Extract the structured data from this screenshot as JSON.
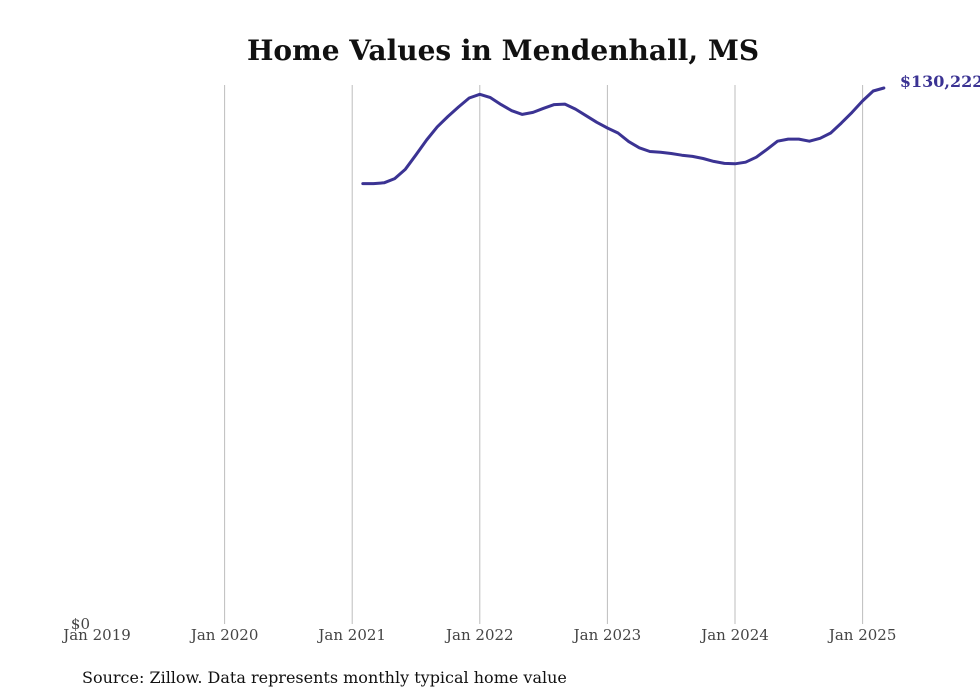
{
  "chart_data": {
    "type": "line",
    "title": "Home Values in Mendenhall, MS",
    "x_tick_labels": [
      "Jan 2019",
      "Jan 2020",
      "Jan 2021",
      "Jan 2022",
      "Jan 2023",
      "Jan 2024",
      "Jan 2025"
    ],
    "y_tick_labels": [
      "$0"
    ],
    "xlim": [
      "2019-01",
      "2025-06"
    ],
    "ylim": [
      0,
      130222
    ],
    "grid": "vertical",
    "line_color": "#3b3393",
    "end_label": "$130,222",
    "series": [
      {
        "x": [
          "2021-02",
          "2021-03",
          "2021-04",
          "2021-05",
          "2021-06",
          "2021-07",
          "2021-08",
          "2021-09",
          "2021-10",
          "2021-11",
          "2021-12",
          "2022-01",
          "2022-02",
          "2022-03",
          "2022-04",
          "2022-05",
          "2022-06",
          "2022-07",
          "2022-08",
          "2022-09",
          "2022-10",
          "2022-11",
          "2022-12",
          "2023-01",
          "2023-02",
          "2023-03",
          "2023-04",
          "2023-05",
          "2023-06",
          "2023-07",
          "2023-08",
          "2023-09",
          "2023-10",
          "2023-11",
          "2023-12",
          "2024-01",
          "2024-02",
          "2024-03",
          "2024-04",
          "2024-05",
          "2024-06",
          "2024-07",
          "2024-08",
          "2024-09",
          "2024-10",
          "2024-11",
          "2024-12",
          "2025-01",
          "2025-02",
          "2025-03"
        ],
        "values": [
          107000,
          107000,
          107200,
          108200,
          110500,
          114000,
          117600,
          120800,
          123300,
          125600,
          127800,
          128700,
          127900,
          126200,
          124700,
          123800,
          124300,
          125300,
          126200,
          126300,
          125100,
          123500,
          121900,
          120500,
          119300,
          117200,
          115700,
          114800,
          114600,
          114300,
          113900,
          113600,
          113100,
          112400,
          111900,
          111800,
          112200,
          113400,
          115300,
          117300,
          117800,
          117800,
          117300,
          118000,
          119300,
          121700,
          124300,
          127100,
          129500,
          130222
        ]
      }
    ]
  },
  "source_text": "Source: Zillow. Data represents monthly typical home value"
}
